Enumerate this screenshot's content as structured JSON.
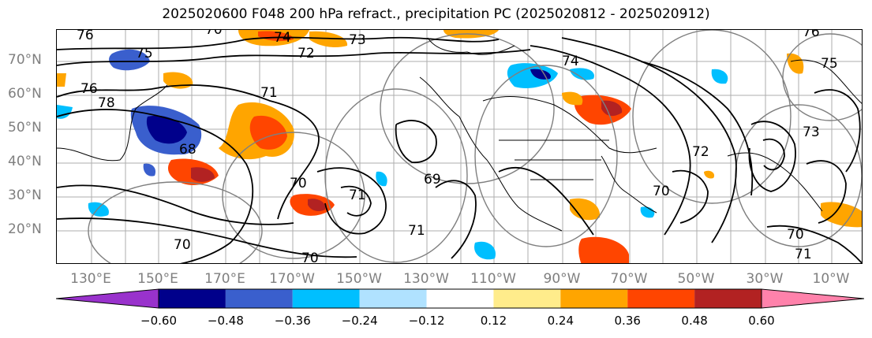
{
  "title": "2025020600 F048 200 hPa refract., precipitation PC (2025020812 - 2025020912)",
  "map": {
    "lat_labels": [
      "70°N",
      "60°N",
      "50°N",
      "40°N",
      "30°N",
      "20°N"
    ],
    "lon_labels": [
      "130°E",
      "150°E",
      "170°E",
      "170°W",
      "150°W",
      "130°W",
      "110°W",
      "90°W",
      "70°W",
      "50°W",
      "30°W",
      "10°W"
    ],
    "contour_labels": [
      "76",
      "70",
      "74",
      "73",
      "72",
      "75",
      "76",
      "78",
      "71",
      "68",
      "70",
      "71",
      "69",
      "70",
      "71",
      "70",
      "70",
      "74",
      "72",
      "73",
      "75",
      "76",
      "70",
      "71"
    ]
  },
  "colorbar": {
    "ticks": [
      "−0.60",
      "−0.48",
      "−0.36",
      "−0.24",
      "−0.12",
      "0.12",
      "0.24",
      "0.36",
      "0.48",
      "0.60"
    ],
    "colors": [
      "#9932cc",
      "#00008b",
      "#3a5fcd",
      "#00bfff",
      "#b0e2ff",
      "#ffffff",
      "#ffec8b",
      "#ffa500",
      "#ff4500",
      "#b22222",
      "#ff82ab"
    ]
  }
}
